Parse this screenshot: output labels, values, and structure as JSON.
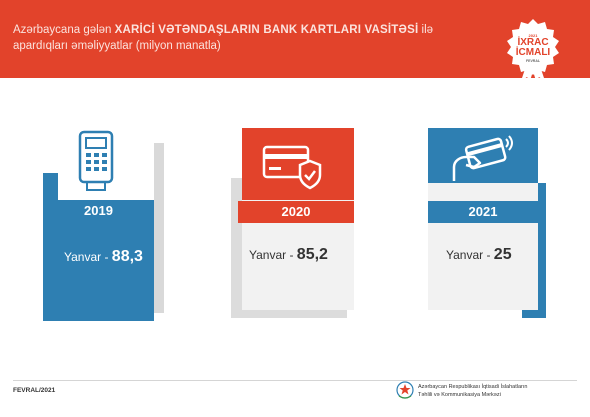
{
  "header": {
    "line1_prefix": "Azərbaycana gələn ",
    "line1_bold": "XARİCİ VƏTƏNDAŞLARIN BANK KARTLARI VASİTƏSİ",
    "line1_suffix": " ilə",
    "line2": "apardıqları əməliyyatlar (milyon manatla)"
  },
  "badge": {
    "year": "2021",
    "line1": "İXRAC",
    "line2": "İCMALI",
    "small": "FEVRAL"
  },
  "cards": [
    {
      "year": "2019",
      "month_label": "Yanvar - ",
      "value": "88,3",
      "icon": "card-terminal-icon",
      "color": "#2e7fb2"
    },
    {
      "year": "2020",
      "month_label": "Yanvar - ",
      "value": "85,2",
      "icon": "credit-card-shield-icon",
      "color": "#e2432b"
    },
    {
      "year": "2021",
      "month_label": "Yanvar - ",
      "value": "25",
      "icon": "contactless-card-icon",
      "color": "#2e7fb2"
    }
  ],
  "footer": {
    "date": "FEVRAL/2021",
    "org_line1": "Azərbaycan Respublikası İqtisadi İslahatların",
    "org_line2": "Təhlili və Kommunikasiya Mərkəzi"
  }
}
